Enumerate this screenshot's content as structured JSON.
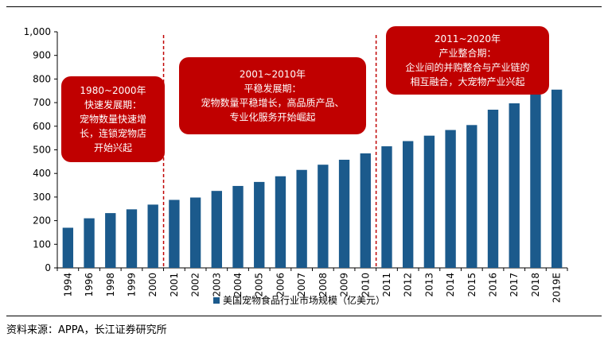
{
  "chart_data": {
    "type": "bar",
    "categories": [
      "1994",
      "1996",
      "1998",
      "1999",
      "2000",
      "2001",
      "2002",
      "2003",
      "2004",
      "2005",
      "2006",
      "2007",
      "2008",
      "2009",
      "2010",
      "2011",
      "2012",
      "2013",
      "2014",
      "2015",
      "2016",
      "2017",
      "2018",
      "2019E"
    ],
    "series": [
      {
        "name": "美国宠物食品行业市场规模（亿美元）",
        "color": "#1b5a8c",
        "values": [
          170,
          210,
          232,
          248,
          268,
          288,
          298,
          326,
          347,
          364,
          388,
          415,
          437,
          458,
          485,
          515,
          537,
          560,
          584,
          605,
          670,
          697,
          735,
          755
        ]
      }
    ],
    "y_ticks": [
      "0",
      "100",
      "200",
      "300",
      "400",
      "500",
      "600",
      "700",
      "800",
      "900",
      "1,000"
    ],
    "ylim": [
      0,
      1000
    ],
    "grid": false,
    "legend_position": "bottom",
    "annotations": [
      {
        "id": "period-1",
        "lines": [
          "1980~2000年",
          "快速发展期：",
          "宠物数量快速增",
          "长，连锁宠物店",
          "开始兴起"
        ]
      },
      {
        "id": "period-2",
        "lines": [
          "2001~2010年",
          "平稳发展期：",
          "宠物数量平稳增长，高品质产品、",
          "专业化服务开始崛起"
        ]
      },
      {
        "id": "period-3",
        "lines": [
          "2011~2020年",
          "产业整合期：",
          "企业间的并购整合与产业链的",
          "相互融合，大宠物产业兴起"
        ]
      }
    ],
    "annotation_color": "#c00000"
  },
  "source": "资料来源：APPA，长江证券研究所"
}
